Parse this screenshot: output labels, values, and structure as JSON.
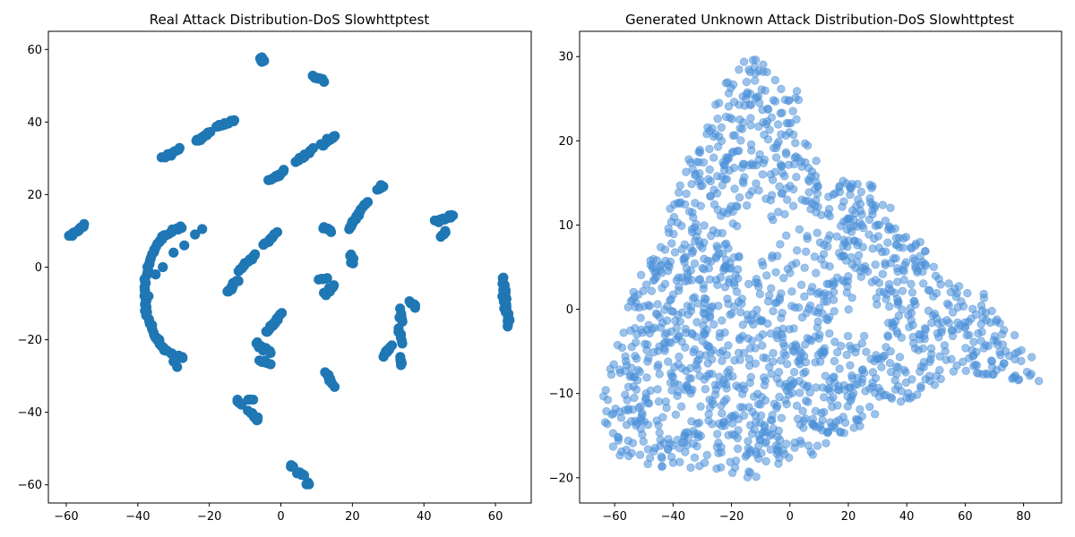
{
  "chart_data": [
    {
      "type": "scatter",
      "title": "Real Attack Distribution-DoS Slowhttptest",
      "xlim": [
        -65,
        70
      ],
      "ylim": [
        -65,
        65
      ],
      "xticks": [
        -60,
        -40,
        -20,
        0,
        20,
        40,
        60
      ],
      "yticks": [
        -60,
        -40,
        -20,
        0,
        20,
        40,
        60
      ],
      "grid": false,
      "color": "#1f77b4",
      "opacity": 1.0,
      "segments": [
        {
          "from": [
            -6,
            58
          ],
          "to": [
            -5,
            56.5
          ],
          "n": 8
        },
        {
          "from": [
            9,
            52.5
          ],
          "to": [
            12,
            51.5
          ],
          "n": 10
        },
        {
          "from": [
            -13,
            40.5
          ],
          "to": [
            -18,
            38.5
          ],
          "n": 12
        },
        {
          "from": [
            -20,
            37
          ],
          "to": [
            -24,
            34.5
          ],
          "n": 12
        },
        {
          "from": [
            -33,
            30
          ],
          "to": [
            -28,
            32.5
          ],
          "n": 12
        },
        {
          "from": [
            -3,
            24
          ],
          "to": [
            1,
            26.5
          ],
          "n": 12
        },
        {
          "from": [
            4,
            29
          ],
          "to": [
            9,
            32.5
          ],
          "n": 14
        },
        {
          "from": [
            11,
            33.5
          ],
          "to": [
            15,
            36
          ],
          "n": 12
        },
        {
          "from": [
            27,
            21.5
          ],
          "to": [
            29,
            22.5
          ],
          "n": 6
        },
        {
          "from": [
            -59,
            8.5
          ],
          "to": [
            -55,
            11.5
          ],
          "n": 14
        },
        {
          "from": [
            -5,
            6
          ],
          "to": [
            -1,
            9.5
          ],
          "n": 12
        },
        {
          "from": [
            -12,
            -1
          ],
          "to": [
            -7,
            3.5
          ],
          "n": 14
        },
        {
          "from": [
            -15,
            -7
          ],
          "to": [
            -12,
            -3.5
          ],
          "n": 12
        },
        {
          "from": [
            -4,
            -18
          ],
          "to": [
            0,
            -13
          ],
          "n": 14
        },
        {
          "from": [
            12,
            11
          ],
          "to": [
            14,
            10
          ],
          "n": 6
        },
        {
          "from": [
            11,
            -3.5
          ],
          "to": [
            13,
            -3
          ],
          "n": 6
        },
        {
          "from": [
            12,
            -7.5
          ],
          "to": [
            15,
            -5
          ],
          "n": 10
        },
        {
          "from": [
            20,
            1
          ],
          "to": [
            20,
            3.5
          ],
          "n": 5
        },
        {
          "from": [
            19,
            10.5
          ],
          "to": [
            24,
            18
          ],
          "n": 20
        },
        {
          "from": [
            43,
            12.5
          ],
          "to": [
            48,
            14
          ],
          "n": 14
        },
        {
          "from": [
            45,
            8.5
          ],
          "to": [
            46,
            10
          ],
          "n": 5
        },
        {
          "from": [
            62,
            -3
          ],
          "to": [
            63.5,
            -16
          ],
          "n": 28
        },
        {
          "from": [
            33,
            -12
          ],
          "to": [
            34,
            -15
          ],
          "n": 6
        },
        {
          "from": [
            33,
            -17
          ],
          "to": [
            34,
            -21
          ],
          "n": 6
        },
        {
          "from": [
            33,
            -25
          ],
          "to": [
            34,
            -27
          ],
          "n": 6
        },
        {
          "from": [
            29,
            -24.5
          ],
          "to": [
            31,
            -21.5
          ],
          "n": 8
        },
        {
          "from": [
            36.5,
            -9.5
          ],
          "to": [
            37.5,
            -11
          ],
          "n": 5
        },
        {
          "from": [
            13,
            -29
          ],
          "to": [
            14.5,
            -33
          ],
          "n": 10
        },
        {
          "from": [
            -7,
            -21
          ],
          "to": [
            -3,
            -23.5
          ],
          "n": 12
        },
        {
          "from": [
            -6,
            -25.5
          ],
          "to": [
            -3,
            -26.5
          ],
          "n": 6
        },
        {
          "from": [
            -12,
            -36.5
          ],
          "to": [
            -11,
            -38
          ],
          "n": 6
        },
        {
          "from": [
            -9,
            -36.5
          ],
          "to": [
            -8,
            -36.5
          ],
          "n": 3
        },
        {
          "from": [
            -9,
            -40
          ],
          "to": [
            -6,
            -42
          ],
          "n": 8
        },
        {
          "from": [
            3,
            -55
          ],
          "to": [
            3.5,
            -55
          ],
          "n": 3
        },
        {
          "from": [
            5,
            -56.5
          ],
          "to": [
            6.5,
            -57.5
          ],
          "n": 6
        },
        {
          "from": [
            7.5,
            -59.5
          ],
          "to": [
            8,
            -59.5
          ],
          "n": 3
        }
      ],
      "arcs": [
        {
          "center": [
            -27,
            -7
          ],
          "rx": 11,
          "ry": 18,
          "start_deg": 95,
          "end_deg": 268,
          "n": 70
        },
        {
          "center": [
            -27,
            -7
          ],
          "rx": 11,
          "ry": 18,
          "start_deg": 268,
          "end_deg": 280,
          "n": 0
        }
      ],
      "extra_points": [
        [
          -38,
          -6
        ],
        [
          -37,
          -8
        ],
        [
          -38,
          -12
        ],
        [
          -36,
          -16
        ],
        [
          -34,
          -20
        ],
        [
          -32,
          -23
        ],
        [
          -30,
          -26
        ],
        [
          -29,
          -27.5
        ],
        [
          -33,
          0
        ],
        [
          -30,
          4
        ],
        [
          -27,
          6
        ],
        [
          -24,
          9
        ],
        [
          -22,
          10.5
        ],
        [
          -35,
          -2
        ]
      ]
    },
    {
      "type": "scatter",
      "title": "Generated Unknown Attack Distribution-DoS Slowhttptest",
      "xlim": [
        -72,
        93
      ],
      "ylim": [
        -23,
        33
      ],
      "xticks": [
        -60,
        -40,
        -20,
        0,
        20,
        40,
        60,
        80
      ],
      "yticks": [
        -20,
        -10,
        0,
        10,
        20,
        30
      ],
      "grid": false,
      "color": "#4a90d9",
      "opacity": 0.55,
      "n_points": 1500,
      "polygon": [
        [
          -64,
          -13
        ],
        [
          -62,
          -17
        ],
        [
          -50,
          -19
        ],
        [
          -30,
          -19
        ],
        [
          -18,
          -21
        ],
        [
          -5,
          -19
        ],
        [
          10,
          -17
        ],
        [
          28,
          -13
        ],
        [
          40,
          -11
        ],
        [
          55,
          -8
        ],
        [
          70,
          -8
        ],
        [
          86,
          -9
        ],
        [
          84,
          -6
        ],
        [
          76,
          -2
        ],
        [
          66,
          2
        ],
        [
          56,
          3
        ],
        [
          45,
          8
        ],
        [
          38,
          10
        ],
        [
          30,
          15
        ],
        [
          22,
          15
        ],
        [
          14,
          16
        ],
        [
          8,
          18
        ],
        [
          5,
          22
        ],
        [
          3,
          26
        ],
        [
          -2,
          26
        ],
        [
          -6,
          28
        ],
        [
          -9,
          31
        ],
        [
          -14,
          30
        ],
        [
          -20,
          28
        ],
        [
          -25,
          25
        ],
        [
          -30,
          22
        ],
        [
          -35,
          18
        ],
        [
          -40,
          14
        ],
        [
          -44,
          8
        ],
        [
          -50,
          5
        ],
        [
          -56,
          0
        ],
        [
          -60,
          -5
        ],
        [
          -64,
          -10
        ]
      ]
    }
  ]
}
